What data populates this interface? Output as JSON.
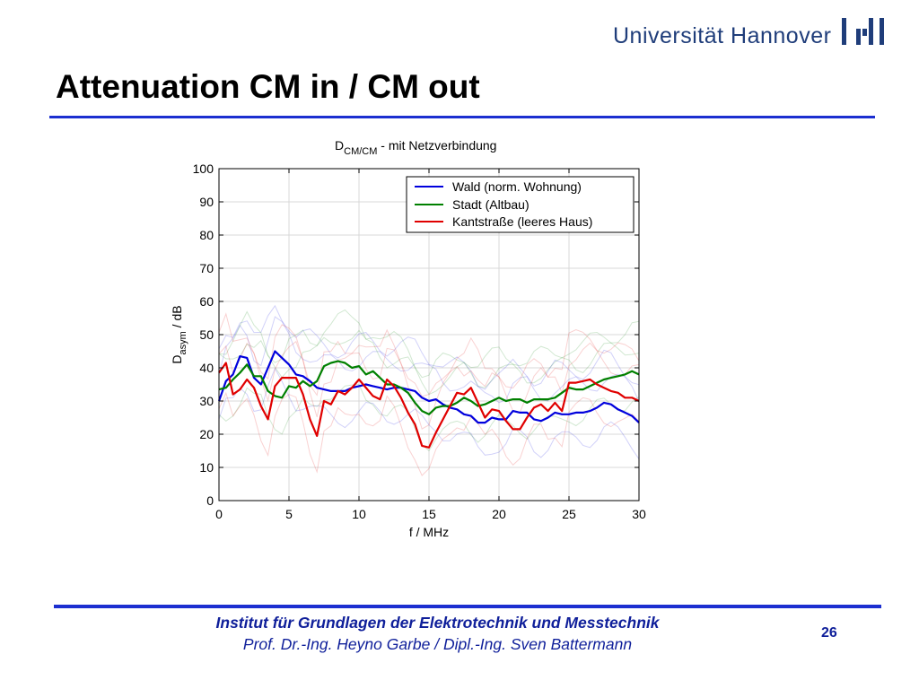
{
  "header": {
    "university": "Universität Hannover",
    "slide_title": "Attenuation CM in / CM out"
  },
  "footer": {
    "institute": "Institut für Grundlagen der Elektrotechnik und Messtechnik",
    "authors": "Prof. Dr.-Ing. Heyno Garbe / Dipl.-Ing. Sven Battermann",
    "page_number": "26"
  },
  "colors": {
    "accent_rule": "#1c2fd0",
    "footer_text": "#0f1f9a",
    "logo": "#1f3d7a"
  },
  "chart_data": {
    "type": "line",
    "title_main": "D",
    "title_sub": "CM/CM",
    "title_rest": " - mit Netzverbindung",
    "xlabel": "f / MHz",
    "ylabel_main": "D",
    "ylabel_sub": "asym",
    "ylabel_rest": " / dB",
    "xlim": [
      0,
      30
    ],
    "ylim": [
      0,
      100
    ],
    "xticks": [
      0,
      5,
      10,
      15,
      20,
      25,
      30
    ],
    "yticks": [
      0,
      10,
      20,
      30,
      40,
      50,
      60,
      70,
      80,
      90,
      100
    ],
    "grid": true,
    "legend_position": "top-right",
    "x": [
      0,
      0.5,
      1,
      1.5,
      2,
      2.5,
      3,
      3.5,
      4,
      4.5,
      5,
      5.5,
      6,
      6.5,
      7,
      7.5,
      8,
      8.5,
      9,
      9.5,
      10,
      10.5,
      11,
      11.5,
      12,
      12.5,
      13,
      13.5,
      14,
      14.5,
      15,
      15.5,
      16,
      16.5,
      17,
      17.5,
      18,
      18.5,
      19,
      19.5,
      20,
      20.5,
      21,
      21.5,
      22,
      22.5,
      23,
      23.5,
      24,
      24.5,
      25,
      25.5,
      26,
      26.5,
      27,
      27.5,
      28,
      28.5,
      29,
      29.5,
      30
    ],
    "series": [
      {
        "name": "Wald (norm. Wohnung)",
        "color": "#0000dd",
        "values": [
          30,
          36,
          38,
          43.5,
          43,
          37,
          35,
          40,
          45,
          43,
          41,
          38,
          37.5,
          36,
          34,
          33.5,
          33,
          33,
          33,
          34,
          34.5,
          35,
          34.5,
          34,
          33.5,
          34,
          34,
          33.5,
          33,
          31,
          30,
          30.5,
          29,
          28,
          27.5,
          26,
          25.5,
          23.5,
          23.5,
          25,
          24.5,
          24.5,
          27,
          26.5,
          26.5,
          24.5,
          24,
          25,
          26.5,
          26,
          26,
          26.5,
          26.5,
          27,
          28,
          29.5,
          29,
          27.5,
          26.5,
          25.5,
          23.5
        ]
      },
      {
        "name": "Stadt (Altbau)",
        "color": "#008000",
        "values": [
          33.5,
          34,
          36.5,
          38.5,
          41,
          37.5,
          37.5,
          33,
          31.5,
          31,
          34.5,
          34,
          36,
          34.5,
          36,
          40.5,
          41.5,
          42,
          41.5,
          40,
          40.5,
          38,
          39,
          37,
          35,
          35,
          34,
          32.5,
          29.5,
          27,
          26,
          28,
          28.5,
          28.5,
          29.5,
          31,
          30,
          28.5,
          29,
          30,
          31,
          30,
          30.5,
          30.5,
          29.5,
          30.5,
          30.5,
          30.5,
          31,
          32.5,
          34,
          33.5,
          33.5,
          34.5,
          35.5,
          36.5,
          37,
          37.5,
          38,
          39,
          38
        ]
      },
      {
        "name": "Kantstraße (leeres Haus)",
        "color": "#e00000",
        "values": [
          38.5,
          41.5,
          32,
          33.5,
          36.5,
          34,
          28.5,
          24.5,
          34.5,
          37,
          37,
          37,
          32,
          24.5,
          19.5,
          30,
          29,
          33,
          32,
          34,
          36.5,
          34,
          31.5,
          30.5,
          36.5,
          34.5,
          31,
          26.5,
          23,
          16.5,
          16,
          20.5,
          24.5,
          28.5,
          32.5,
          32,
          34,
          29.5,
          25,
          27.5,
          27,
          24,
          21.5,
          21.5,
          25,
          28,
          29,
          27,
          29.5,
          27,
          35.5,
          35.5,
          36,
          36.5,
          35,
          34,
          33,
          32.5,
          31,
          31,
          30
        ]
      }
    ]
  }
}
